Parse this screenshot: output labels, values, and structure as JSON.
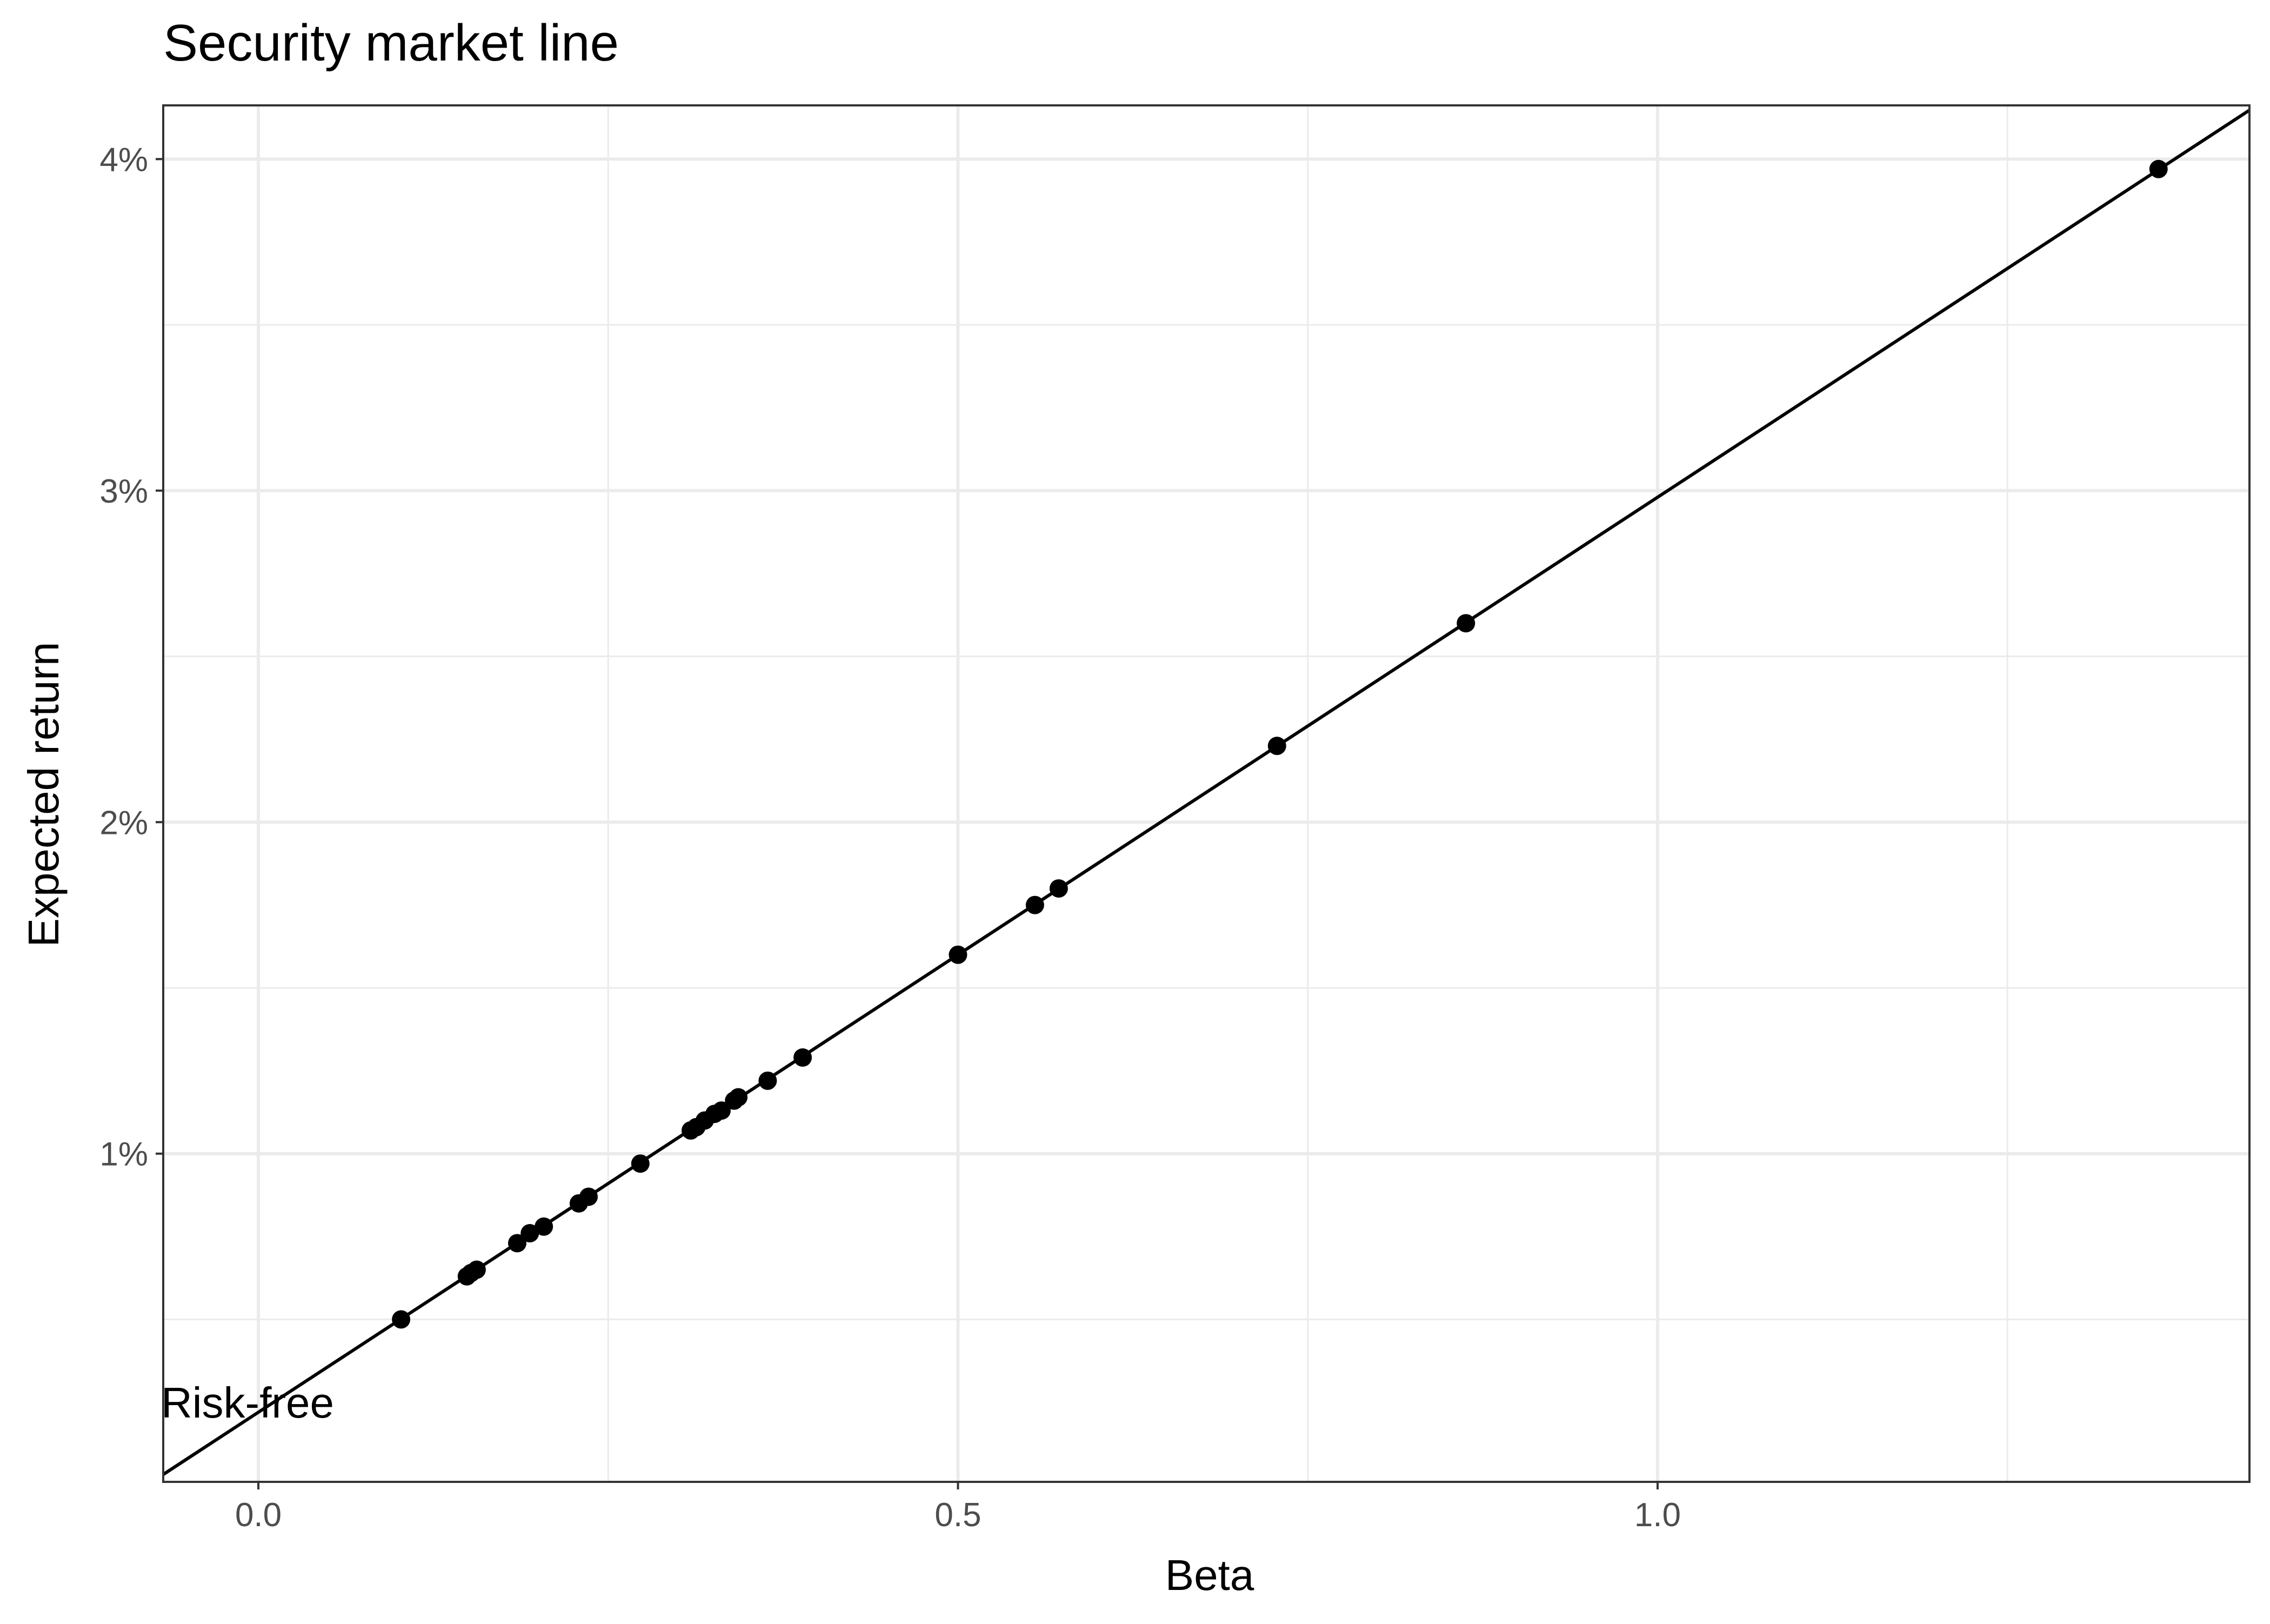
{
  "chart_data": {
    "type": "scatter",
    "title": "Security market line",
    "xlabel": "Beta",
    "ylabel": "Expected return",
    "xlim": [
      -0.068,
      1.423
    ],
    "ylim": [
      0.0001,
      0.04162
    ],
    "x_ticks": [
      {
        "value": 0.0,
        "label": "0.0"
      },
      {
        "value": 0.5,
        "label": "0.5"
      },
      {
        "value": 1.0,
        "label": "1.0"
      }
    ],
    "y_ticks": [
      {
        "value": 0.01,
        "label": "1%"
      },
      {
        "value": 0.02,
        "label": "2%"
      },
      {
        "value": 0.03,
        "label": "3%"
      },
      {
        "value": 0.04,
        "label": "4%"
      }
    ],
    "grid": true,
    "line": {
      "name": "Security market line",
      "intercept": 0.0022,
      "slope": 0.0276
    },
    "series": [
      {
        "x": [
          0.102,
          0.149,
          0.152,
          0.156,
          0.185,
          0.194,
          0.204,
          0.229,
          0.236,
          0.273,
          0.309,
          0.313,
          0.319,
          0.326,
          0.331,
          0.34,
          0.343,
          0.364,
          0.389,
          0.5,
          0.555,
          0.572,
          0.728,
          0.863,
          1.358
        ],
        "y": [
          0.005,
          0.0063,
          0.0064,
          0.0065,
          0.0073,
          0.0076,
          0.0078,
          0.0085,
          0.0087,
          0.0097,
          0.0107,
          0.0108,
          0.011,
          0.0112,
          0.0113,
          0.0116,
          0.0117,
          0.0122,
          0.0129,
          0.016,
          0.0175,
          0.018,
          0.0223,
          0.026,
          0.0397
        ]
      }
    ],
    "annotations": [
      {
        "text": "Risk-free",
        "x": -0.068,
        "y": 0.0022
      }
    ],
    "colors": {
      "points": "#000000",
      "line": "#000000",
      "grid": "#ebebeb",
      "panel_border": "#333333",
      "background": "#ffffff"
    }
  }
}
